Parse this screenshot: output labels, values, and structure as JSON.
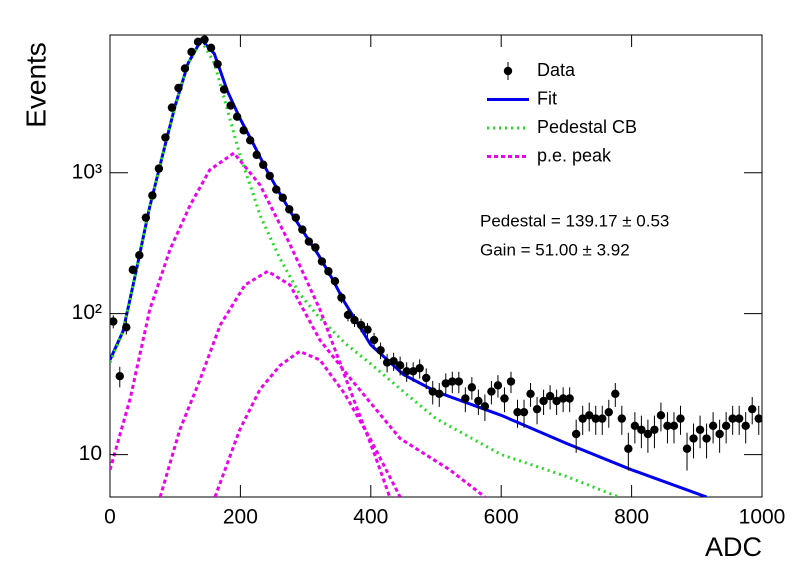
{
  "chart_data": {
    "type": "scatter",
    "xlabel": "ADC",
    "ylabel": "Events",
    "xlim": [
      0,
      1000
    ],
    "ylim": [
      5,
      9500
    ],
    "log_y": true,
    "xticks": [
      0,
      200,
      400,
      600,
      800,
      1000
    ],
    "yticks": [
      10,
      {
        "value": 100,
        "label": "10²"
      },
      {
        "value": 1000,
        "label": "10³"
      }
    ],
    "legend": "upper-right",
    "annotations": [
      "Pedestal = 139.17 ± 0.53",
      "Gain = 51.00 ± 3.92"
    ],
    "series": [
      {
        "name": "Data",
        "color": "#000000",
        "style": "points",
        "x": [
          5,
          15,
          25,
          35,
          45,
          55,
          65,
          75,
          85,
          95,
          105,
          115,
          125,
          135,
          145,
          155,
          165,
          175,
          185,
          195,
          205,
          215,
          225,
          235,
          245,
          255,
          265,
          275,
          285,
          295,
          305,
          315,
          325,
          335,
          345,
          355,
          365,
          375,
          385,
          395,
          405,
          415,
          425,
          435,
          445,
          455,
          465,
          475,
          485,
          495,
          505,
          515,
          525,
          535,
          545,
          555,
          565,
          575,
          585,
          595,
          605,
          615,
          625,
          635,
          645,
          655,
          665,
          675,
          685,
          695,
          705,
          715,
          725,
          735,
          745,
          755,
          765,
          775,
          785,
          795,
          805,
          815,
          825,
          835,
          845,
          855,
          865,
          875,
          885,
          895,
          905,
          915,
          925,
          935,
          945,
          955,
          965,
          975,
          985,
          995
        ],
        "values": [
          88,
          36,
          80,
          205,
          260,
          480,
          690,
          1070,
          1780,
          2900,
          4000,
          5500,
          7200,
          8500,
          8800,
          7700,
          5900,
          3900,
          3000,
          2500,
          2000,
          1700,
          1340,
          1140,
          950,
          760,
          665,
          550,
          480,
          395,
          325,
          295,
          235,
          200,
          170,
          130,
          98,
          90,
          83,
          77,
          65,
          55,
          45,
          46,
          43,
          39,
          39,
          41,
          35,
          28,
          27,
          32,
          33,
          33,
          25,
          30,
          24,
          22,
          28,
          31,
          25,
          33,
          20,
          20,
          27,
          21,
          24,
          26,
          24,
          25,
          25,
          14,
          18,
          19,
          18,
          18,
          20,
          27,
          18,
          11,
          16,
          15,
          14,
          15,
          19,
          16,
          16,
          18,
          11,
          13,
          15,
          13,
          16,
          14,
          16,
          18,
          18,
          16,
          21,
          18
        ],
        "errors": [
          9.4,
          6,
          8.9,
          14.3,
          16.1,
          21.9,
          26.3,
          32.7,
          42.2,
          53.9,
          63.2,
          74.2,
          84.9,
          92.2,
          93.8,
          87.7,
          76.8,
          62.4,
          54.8,
          50,
          44.7,
          41.2,
          36.6,
          33.8,
          30.8,
          27.6,
          25.8,
          23.5,
          21.9,
          19.9,
          18,
          17.2,
          15.3,
          14.1,
          13,
          11.4,
          9.9,
          9.5,
          9.1,
          8.8,
          8.1,
          7.4,
          6.7,
          6.8,
          6.6,
          6.2,
          6.2,
          6.4,
          5.9,
          5.3,
          5.2,
          5.7,
          5.7,
          5.7,
          5,
          5.5,
          4.9,
          4.7,
          5.3,
          5.6,
          5,
          5.7,
          4.5,
          4.5,
          5.2,
          4.6,
          4.9,
          5.1,
          4.9,
          5,
          5,
          3.7,
          4.2,
          4.4,
          4.2,
          4.2,
          4.5,
          5.2,
          4.2,
          3.3,
          4,
          3.9,
          3.7,
          3.9,
          4.4,
          4,
          4,
          4.2,
          3.3,
          3.6,
          3.9,
          3.6,
          4,
          3.7,
          4,
          4.2,
          4.2,
          4,
          4.6,
          4.2
        ]
      },
      {
        "name": "Fit",
        "color": "#0000ee",
        "style": "solid",
        "x": [
          0,
          20,
          40,
          60,
          80,
          100,
          120,
          140,
          160,
          180,
          200,
          220,
          240,
          260,
          280,
          300,
          320,
          340,
          360,
          380,
          400,
          450,
          500,
          600,
          700,
          800,
          915
        ],
        "values": [
          47,
          75,
          200,
          550,
          1300,
          3000,
          6000,
          8800,
          7000,
          3800,
          2400,
          1600,
          1050,
          720,
          500,
          360,
          260,
          180,
          120,
          85,
          60,
          37,
          28,
          19,
          12,
          7.8,
          5
        ]
      },
      {
        "name": "Pedestal CB",
        "color": "#22dd22",
        "style": "dotted",
        "x": [
          0,
          20,
          40,
          60,
          80,
          100,
          120,
          140,
          160,
          180,
          200,
          220,
          230,
          260,
          290,
          320,
          360,
          400,
          450,
          500,
          600,
          700,
          780
        ],
        "values": [
          45,
          75,
          200,
          550,
          1300,
          3000,
          6000,
          8700,
          6000,
          2800,
          1300,
          700,
          500,
          250,
          140,
          95,
          62,
          44,
          28,
          18,
          10,
          7,
          5
        ]
      },
      {
        "name": "p.e. peak",
        "color": "#ee00ee",
        "style": "dashed",
        "curves": [
          {
            "x": [
              0,
              31,
              61,
              92,
              123,
              153,
              190,
              230,
              276,
              322,
              368,
              406,
              429
            ],
            "values": [
              7.8,
              25,
              107,
              285,
              590,
              1050,
              1380,
              820,
              310,
              107,
              29,
              10,
              5
            ]
          },
          {
            "x": [
              77,
              107,
              138,
              169,
              207,
              242,
              276,
              322,
              368,
              445,
              521,
              575
            ],
            "values": [
              5,
              15,
              34,
              83,
              160,
              200,
              160,
              65,
              35,
              13,
              7.8,
              5
            ]
          },
          {
            "x": [
              161,
              199,
              230,
              261,
              291,
              322,
              360,
              399,
              445
            ],
            "values": [
              5,
              15,
              29,
              43,
              54,
              47,
              27,
              13,
              5
            ]
          }
        ]
      }
    ]
  }
}
